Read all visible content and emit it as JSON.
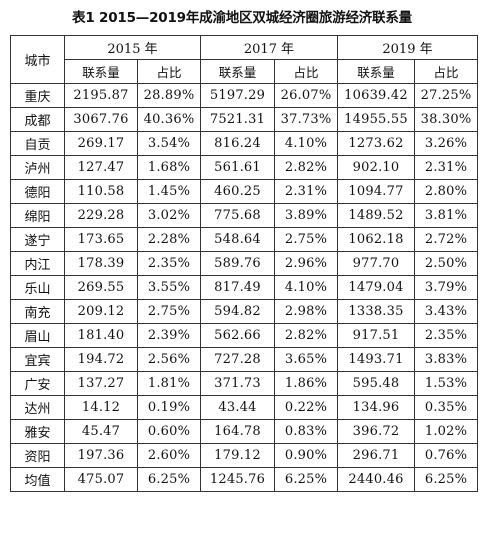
{
  "caption": "表1  2015—2019年成渝地区双城经济圈旅游经济联系量",
  "header": {
    "city": "城市",
    "years": [
      "2015 年",
      "2017 年",
      "2019 年"
    ],
    "sub": [
      "联系量",
      "占比",
      "联系量",
      "占比",
      "联系量",
      "占比"
    ]
  },
  "rows": [
    {
      "city": "重庆",
      "v": [
        "2195.87",
        "28.89%",
        "5197.29",
        "26.07%",
        "10639.42",
        "27.25%"
      ]
    },
    {
      "city": "成都",
      "v": [
        "3067.76",
        "40.36%",
        "7521.31",
        "37.73%",
        "14955.55",
        "38.30%"
      ]
    },
    {
      "city": "自贡",
      "v": [
        "269.17",
        "3.54%",
        "816.24",
        "4.10%",
        "1273.62",
        "3.26%"
      ]
    },
    {
      "city": "泸州",
      "v": [
        "127.47",
        "1.68%",
        "561.61",
        "2.82%",
        "902.10",
        "2.31%"
      ]
    },
    {
      "city": "德阳",
      "v": [
        "110.58",
        "1.45%",
        "460.25",
        "2.31%",
        "1094.77",
        "2.80%"
      ]
    },
    {
      "city": "绵阳",
      "v": [
        "229.28",
        "3.02%",
        "775.68",
        "3.89%",
        "1489.52",
        "3.81%"
      ]
    },
    {
      "city": "遂宁",
      "v": [
        "173.65",
        "2.28%",
        "548.64",
        "2.75%",
        "1062.18",
        "2.72%"
      ]
    },
    {
      "city": "内江",
      "v": [
        "178.39",
        "2.35%",
        "589.76",
        "2.96%",
        "977.70",
        "2.50%"
      ]
    },
    {
      "city": "乐山",
      "v": [
        "269.55",
        "3.55%",
        "817.49",
        "4.10%",
        "1479.04",
        "3.79%"
      ]
    },
    {
      "city": "南充",
      "v": [
        "209.12",
        "2.75%",
        "594.82",
        "2.98%",
        "1338.35",
        "3.43%"
      ]
    },
    {
      "city": "眉山",
      "v": [
        "181.40",
        "2.39%",
        "562.66",
        "2.82%",
        "917.51",
        "2.35%"
      ]
    },
    {
      "city": "宜宾",
      "v": [
        "194.72",
        "2.56%",
        "727.28",
        "3.65%",
        "1493.71",
        "3.83%"
      ]
    },
    {
      "city": "广安",
      "v": [
        "137.27",
        "1.81%",
        "371.73",
        "1.86%",
        "595.48",
        "1.53%"
      ]
    },
    {
      "city": "达州",
      "v": [
        "14.12",
        "0.19%",
        "43.44",
        "0.22%",
        "134.96",
        "0.35%"
      ]
    },
    {
      "city": "雅安",
      "v": [
        "45.47",
        "0.60%",
        "164.78",
        "0.83%",
        "396.72",
        "1.02%"
      ]
    },
    {
      "city": "资阳",
      "v": [
        "197.36",
        "2.60%",
        "179.12",
        "0.90%",
        "296.71",
        "0.76%"
      ]
    },
    {
      "city": "均值",
      "v": [
        "475.07",
        "6.25%",
        "1245.76",
        "6.25%",
        "2440.46",
        "6.25%"
      ]
    }
  ]
}
